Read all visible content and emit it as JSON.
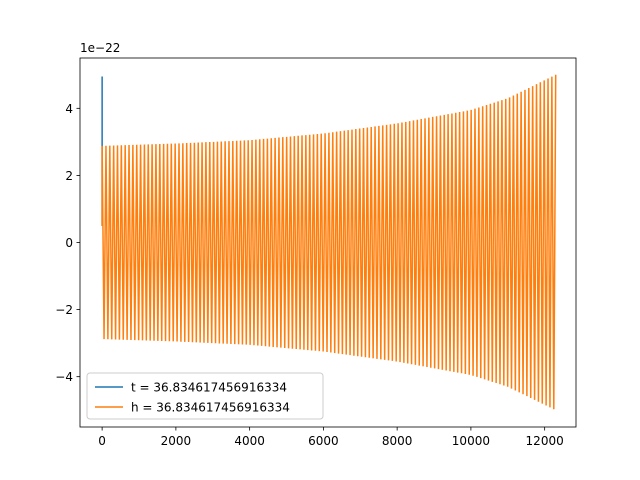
{
  "chart_data": {
    "type": "line",
    "title": "",
    "xlabel": "",
    "ylabel": "",
    "y_offset_label": "1e−22",
    "y_scale_exponent": -22,
    "xlim": [
      -600,
      12850
    ],
    "ylim": [
      -5.5e-22,
      5.5e-22
    ],
    "x_ticks": [
      0,
      2000,
      4000,
      6000,
      8000,
      10000,
      12000
    ],
    "x_tick_labels": [
      "0",
      "2000",
      "4000",
      "6000",
      "8000",
      "10000",
      "12000"
    ],
    "y_ticks": [
      -4e-22,
      -2e-22,
      0,
      2e-22,
      4e-22
    ],
    "y_tick_labels": [
      "−4",
      "−2",
      "0",
      "2",
      "4"
    ],
    "grid": false,
    "legend_position": "lower-left",
    "series": [
      {
        "name": "t = 36.834617456916334",
        "color": "#1f77b4",
        "segments": [
          [
            [
              0,
              5e-23
            ],
            [
              0,
              4.95e-22
            ],
            [
              0,
              2.9e-22
            ]
          ]
        ]
      },
      {
        "name": "h = 36.834617456916334",
        "color": "#ff7f0e",
        "waveform": {
          "x_start": 0,
          "x_end": 12300,
          "cycles": 118,
          "amplitude_start": 2.88e-22,
          "amplitude_at_x": [
            [
              0,
              2.88e-22
            ],
            [
              2000,
              2.95e-22
            ],
            [
              4000,
              3.05e-22
            ],
            [
              6000,
              3.25e-22
            ],
            [
              8000,
              3.55e-22
            ],
            [
              10000,
              3.95e-22
            ],
            [
              11000,
              4.3e-22
            ],
            [
              12300,
              5e-22
            ]
          ]
        }
      }
    ]
  }
}
